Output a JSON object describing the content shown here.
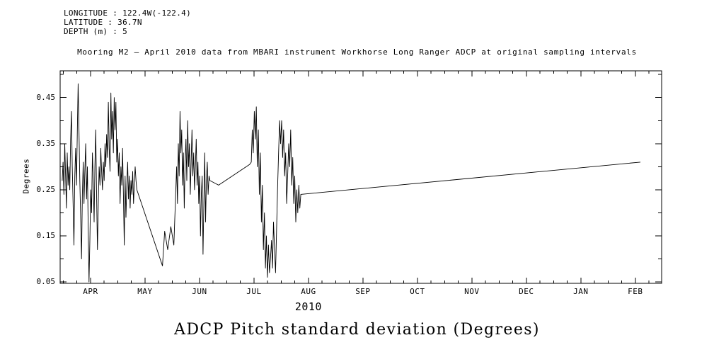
{
  "page": {
    "background": "#ffffff",
    "text_color": "#000000"
  },
  "header": {
    "lines": [
      "LONGITUDE : 122.4W(-122.4)",
      "LATITUDE : 36.7N",
      "DEPTH (m) : 5"
    ]
  },
  "chart_data": {
    "type": "line",
    "title": "Mooring M2 — April 2010 data from MBARI instrument Workhorse Long Ranger ADCP at original sampling intervals",
    "caption": "ADCP Pitch standard deviation (Degrees)",
    "xlabel": "2010",
    "ylabel": "Degrees",
    "line_color": "#000000",
    "grid": false,
    "x_unit": "months since APR 2010 tick",
    "xlim": [
      -0.558,
      10.483
    ],
    "ylim": [
      0.047,
      0.508
    ],
    "xticks": {
      "positions": [
        0,
        1,
        2,
        3,
        4,
        5,
        6,
        7,
        8,
        9,
        10
      ],
      "labels": [
        "APR",
        "MAY",
        "JUN",
        "JUL",
        "AUG",
        "SEP",
        "OCT",
        "NOV",
        "DEC",
        "JAN",
        "FEB"
      ]
    },
    "yticks": {
      "positions": [
        0.05,
        0.15,
        0.25,
        0.35,
        0.45
      ],
      "labels": [
        "0.05",
        "0.15",
        "0.25",
        "0.35",
        "0.45"
      ]
    },
    "segments": [
      {
        "x_start": -0.52,
        "x_end": 0.85,
        "values": [
          0.27,
          0.31,
          0.24,
          0.35,
          0.28,
          0.21,
          0.33,
          0.26,
          0.3,
          0.25,
          0.36,
          0.42,
          0.3,
          0.22,
          0.13,
          0.28,
          0.34,
          0.26,
          0.38,
          0.48,
          0.38,
          0.27,
          0.19,
          0.1,
          0.24,
          0.31,
          0.22,
          0.29,
          0.35,
          0.23,
          0.3,
          0.16,
          0.05,
          0.14,
          0.25,
          0.2,
          0.33,
          0.27,
          0.18,
          0.3,
          0.38,
          0.24,
          0.12,
          0.22,
          0.3,
          0.26,
          0.34,
          0.29,
          0.25,
          0.31,
          0.27,
          0.35,
          0.3,
          0.37,
          0.32,
          0.44,
          0.34,
          0.29,
          0.46,
          0.36,
          0.42,
          0.33,
          0.45,
          0.38,
          0.44,
          0.31,
          0.36,
          0.28,
          0.33,
          0.22,
          0.3,
          0.26,
          0.34,
          0.24,
          0.13,
          0.28,
          0.19,
          0.26,
          0.31,
          0.23,
          0.28,
          0.21,
          0.27,
          0.24,
          0.29,
          0.22,
          0.26,
          0.3,
          0.27,
          0.25
        ]
      },
      {
        "x_start": 1.32,
        "x_end": 1.32,
        "values": [
          0.085
        ]
      },
      {
        "x_start": 1.36,
        "x_end": 1.53,
        "values": [
          0.16,
          0.12,
          0.17,
          0.13
        ]
      },
      {
        "x_start": 1.58,
        "x_end": 2.19,
        "values": [
          0.3,
          0.22,
          0.35,
          0.28,
          0.42,
          0.33,
          0.38,
          0.26,
          0.33,
          0.21,
          0.31,
          0.36,
          0.27,
          0.4,
          0.3,
          0.35,
          0.24,
          0.31,
          0.38,
          0.28,
          0.33,
          0.25,
          0.3,
          0.36,
          0.26,
          0.31,
          0.22,
          0.28,
          0.15,
          0.24,
          0.28,
          0.11,
          0.22,
          0.33,
          0.18,
          0.27,
          0.31,
          0.24,
          0.28,
          0.27
        ]
      },
      {
        "x_start": 2.35,
        "x_end": 2.92,
        "values": [
          0.26,
          0.305
        ]
      },
      {
        "x_start": 2.95,
        "x_end": 3.86,
        "values": [
          0.31,
          0.38,
          0.33,
          0.42,
          0.36,
          0.43,
          0.3,
          0.38,
          0.24,
          0.33,
          0.18,
          0.26,
          0.12,
          0.2,
          0.08,
          0.15,
          0.06,
          0.13,
          0.07,
          0.1,
          0.14,
          0.08,
          0.18,
          0.12,
          0.07,
          0.16,
          0.25,
          0.33,
          0.4,
          0.35,
          0.4,
          0.32,
          0.38,
          0.28,
          0.33,
          0.22,
          0.28,
          0.35,
          0.3,
          0.38,
          0.26,
          0.32,
          0.22,
          0.28,
          0.18,
          0.25,
          0.2,
          0.26,
          0.21,
          0.24
        ]
      },
      {
        "x_start": 10.09,
        "x_end": 10.09,
        "values": [
          0.31
        ]
      }
    ]
  }
}
